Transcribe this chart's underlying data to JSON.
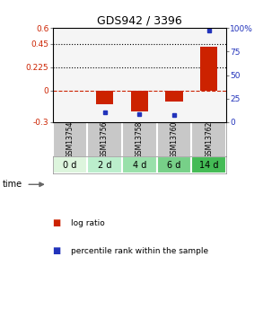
{
  "title": "GDS942 / 3396",
  "samples": [
    "GSM13754",
    "GSM13756",
    "GSM13758",
    "GSM13760",
    "GSM13762"
  ],
  "time_labels": [
    "0 d",
    "2 d",
    "4 d",
    "6 d",
    "14 d"
  ],
  "log_ratios": [
    0.0,
    -0.13,
    -0.2,
    -0.1,
    0.42
  ],
  "percentile_ranks": [
    null,
    10,
    9,
    8,
    97
  ],
  "ylim_left": [
    -0.3,
    0.6
  ],
  "ylim_right": [
    0,
    100
  ],
  "yticks_left": [
    -0.3,
    0,
    0.225,
    0.45,
    0.6
  ],
  "yticks_right": [
    0,
    25,
    50,
    75,
    100
  ],
  "hlines": [
    0.45,
    0.225
  ],
  "bar_color": "#cc2200",
  "dot_color": "#2233bb",
  "zero_line_color": "#cc2200",
  "zero_line_style": "--",
  "hline_style": ":",
  "hline_color": "#000000",
  "bar_width": 0.5,
  "time_row_colors": [
    "#ddf5dd",
    "#bbeecc",
    "#99e0aa",
    "#77d088",
    "#44bb55"
  ],
  "gsm_row_color": "#c8c8c8",
  "legend_log_color": "#cc2200",
  "legend_pct_color": "#2233bb",
  "background_color": "#ffffff",
  "plot_bg_color": "#f5f5f5"
}
